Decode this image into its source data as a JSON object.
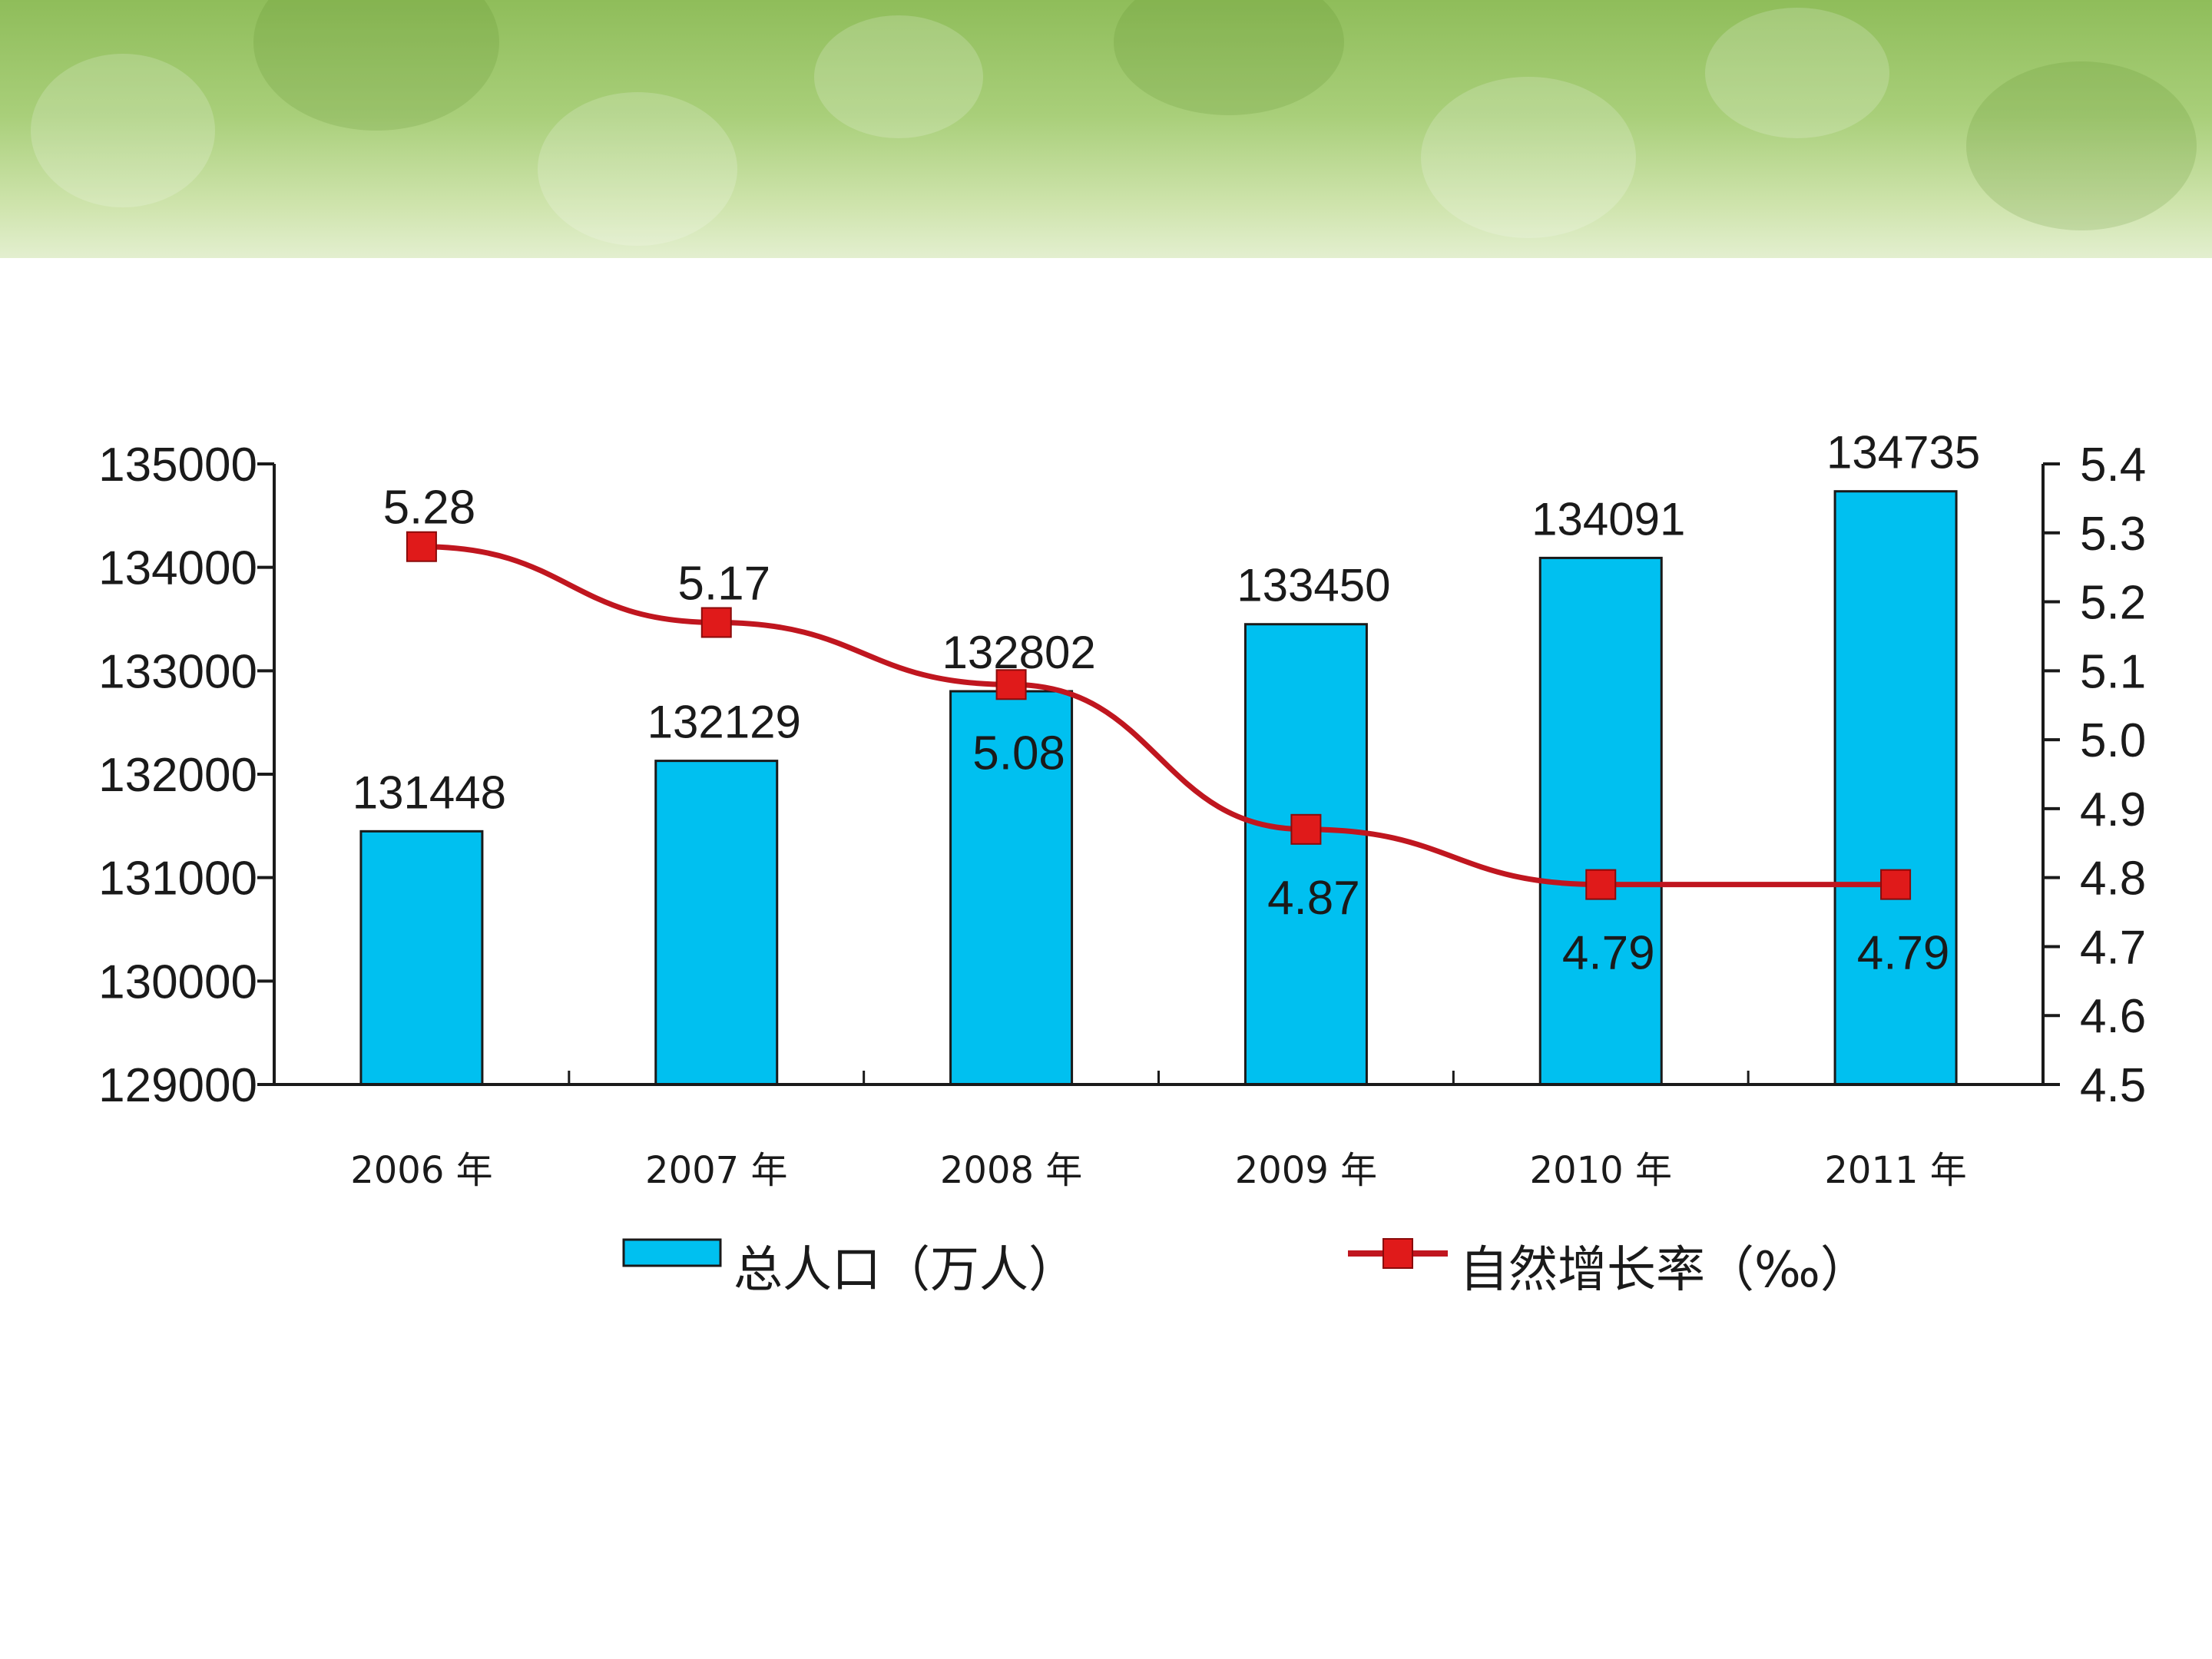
{
  "colors": {
    "bar_fill": "#00c0f0",
    "bar_stroke": "#1a1a1a",
    "line": "#c0161f",
    "marker": "#e01a1a",
    "axis": "#1a1a1a"
  },
  "chart_data": {
    "type": "bar",
    "title": "",
    "categories": [
      "2006 年",
      "2007 年",
      "2008 年",
      "2009 年",
      "2010 年",
      "2011 年"
    ],
    "series": [
      {
        "name": "总人口（万人）",
        "type": "bar",
        "axis": "left",
        "values": [
          131448,
          132129,
          132802,
          133450,
          134091,
          134735
        ],
        "labels": [
          "131448",
          "132129",
          "132802",
          "133450",
          "134091",
          "134735"
        ]
      },
      {
        "name": "自然增长率（‰）",
        "type": "line",
        "axis": "right",
        "values": [
          5.28,
          5.17,
          5.08,
          4.87,
          4.79,
          4.79
        ],
        "labels": [
          "5.28",
          "5.17",
          "5.08",
          "4.87",
          "4.79",
          "4.79"
        ]
      }
    ],
    "y_left": {
      "ylim": [
        129000,
        135000
      ],
      "ticks": [
        "129000",
        "130000",
        "131000",
        "132000",
        "133000",
        "134000",
        "135000"
      ]
    },
    "y_right": {
      "ylim": [
        4.5,
        5.4
      ],
      "ticks": [
        "4.5",
        "4.6",
        "4.7",
        "4.8",
        "4.9",
        "5.0",
        "5.1",
        "5.2",
        "5.3",
        "5.4"
      ]
    },
    "legend": {
      "position": "bottom",
      "bar_label": "总人口（万人）",
      "line_label": "自然增长率（‰）"
    }
  }
}
